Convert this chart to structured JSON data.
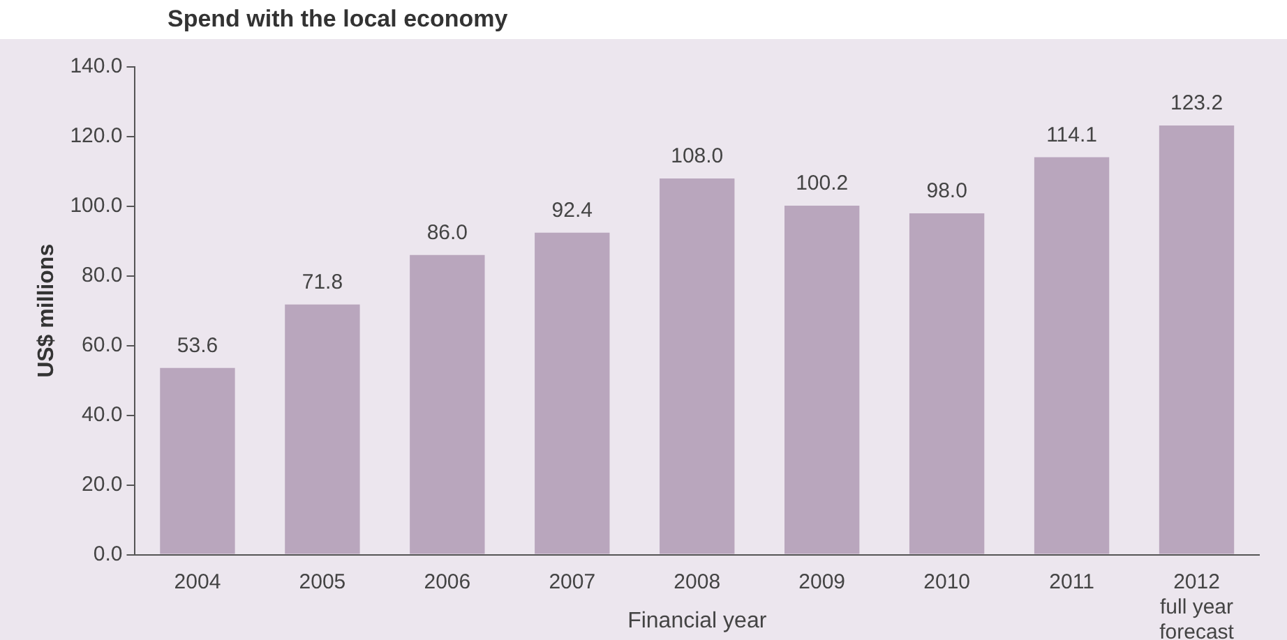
{
  "chart_data": {
    "type": "bar",
    "title": "Spend with the local economy",
    "xlabel": "Financial year",
    "ylabel": "US$ millions",
    "categories": [
      "2004",
      "2005",
      "2006",
      "2007",
      "2008",
      "2009",
      "2010",
      "2011",
      "2012\nfull year\nforecast"
    ],
    "values": [
      53.6,
      71.8,
      86.0,
      92.4,
      108.0,
      100.2,
      98.0,
      114.1,
      123.2
    ],
    "value_labels": [
      "53.6",
      "71.8",
      "86.0",
      "92.4",
      "108.0",
      "100.2",
      "98.0",
      "114.1",
      "123.2"
    ],
    "color": "#b9a6bd",
    "ylim": [
      0,
      140
    ],
    "yticks": [
      {
        "value": 0,
        "label": "0.0"
      },
      {
        "value": 20,
        "label": "20.0"
      },
      {
        "value": 40,
        "label": "40.0"
      },
      {
        "value": 60,
        "label": "60.0"
      },
      {
        "value": 80,
        "label": "80.0"
      },
      {
        "value": 100,
        "label": "100.0"
      },
      {
        "value": 120,
        "label": "120.0"
      },
      {
        "value": 140,
        "label": "140.0"
      }
    ],
    "grid": false,
    "legend": false
  }
}
